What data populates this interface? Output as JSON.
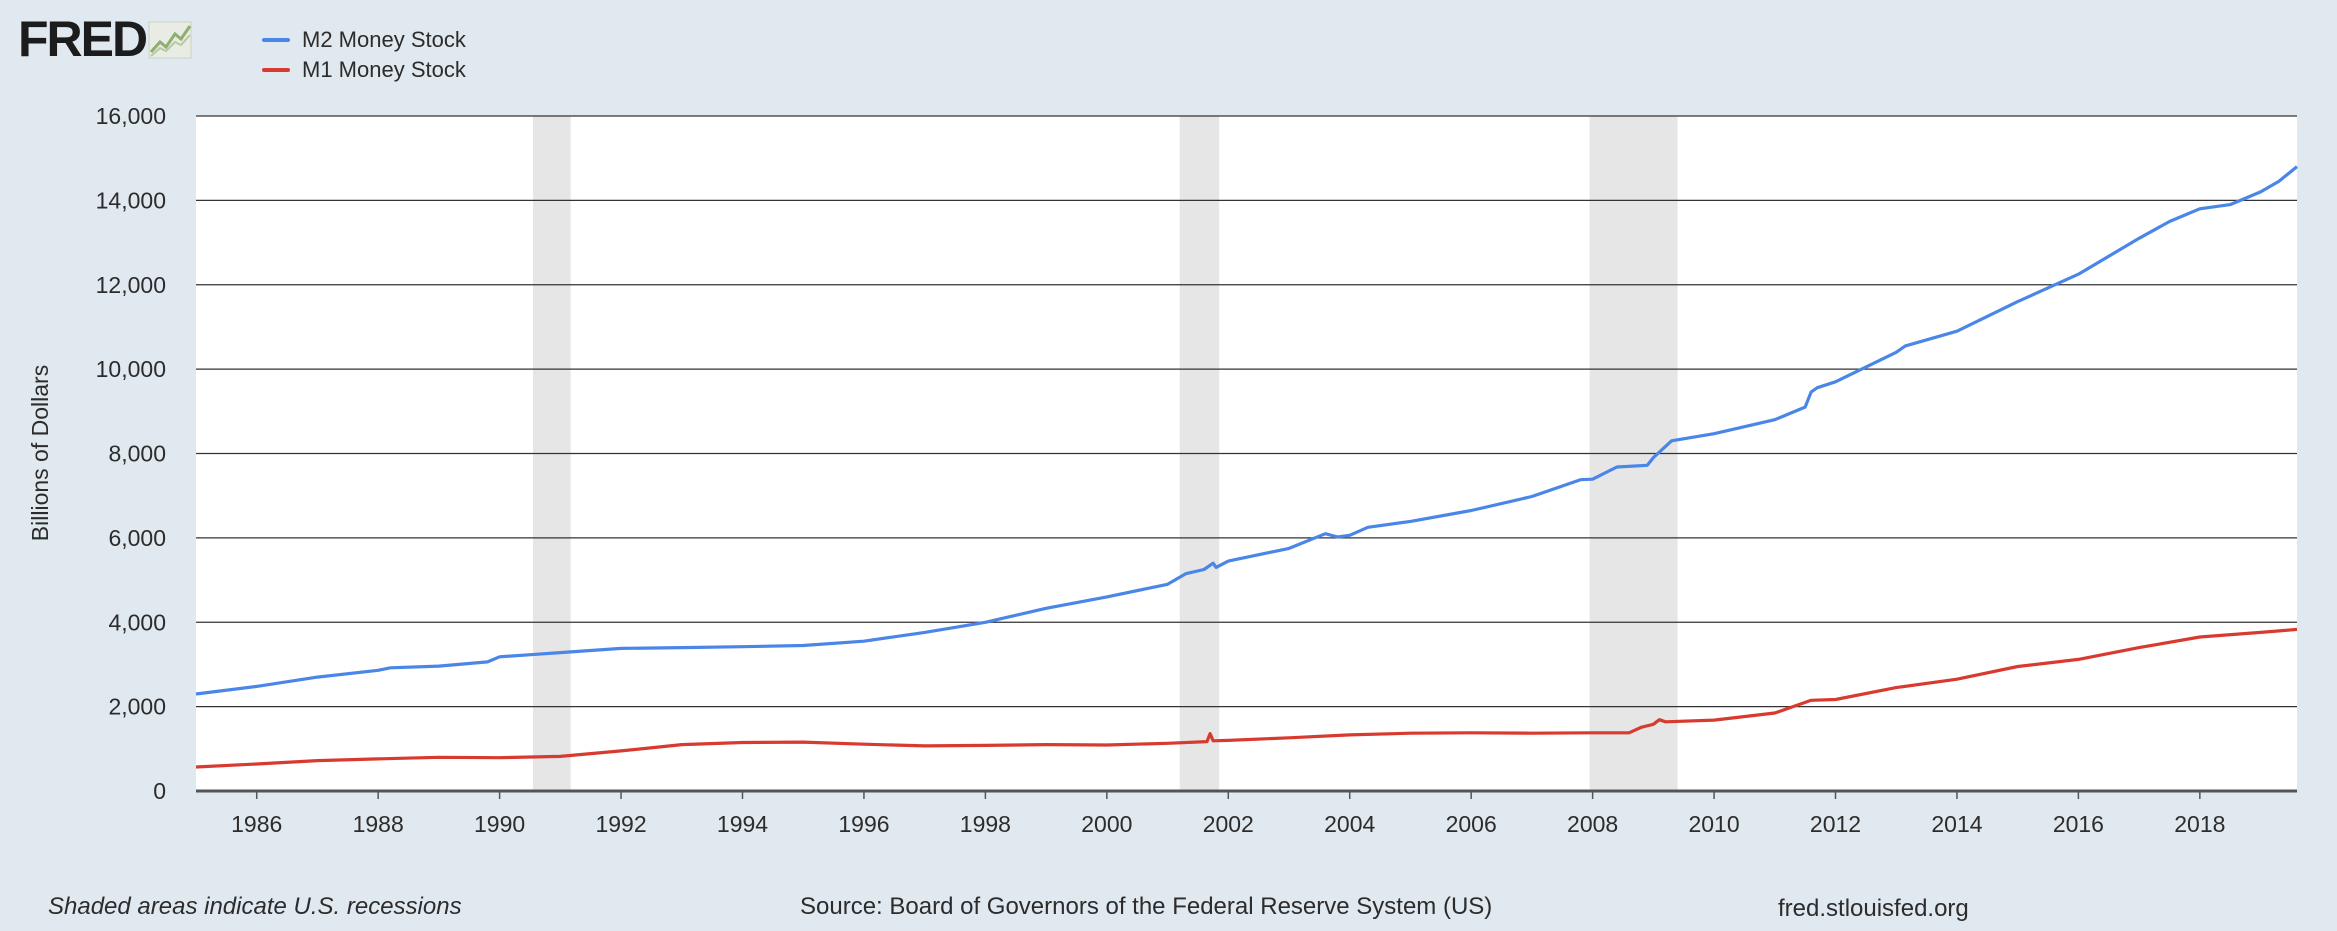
{
  "header": {
    "logo_text": "FRED"
  },
  "footer": {
    "note": "Shaded areas indicate U.S. recessions",
    "source": "Source: Board of Governors of the Federal Reserve System (US)",
    "site": "fred.stlouisfed.org"
  },
  "colors": {
    "m2": "#4a86e8",
    "m1": "#d93a2f",
    "recession": "#e6e6e6",
    "grid": "#333333",
    "background": "#e1e9f0",
    "logo_mark": "#8fae6f"
  },
  "chart_data": {
    "type": "line",
    "ylabel": "Billions of Dollars",
    "xlabel": "",
    "xlim": [
      1985.0,
      2019.6
    ],
    "ylim": [
      0,
      16000
    ],
    "yticks": [
      0,
      2000,
      4000,
      6000,
      8000,
      10000,
      12000,
      14000,
      16000
    ],
    "ytick_labels": [
      "0",
      "2,000",
      "4,000",
      "6,000",
      "8,000",
      "10,000",
      "12,000",
      "14,000",
      "16,000"
    ],
    "xticks": [
      1986,
      1988,
      1990,
      1992,
      1994,
      1996,
      1998,
      2000,
      2002,
      2004,
      2006,
      2008,
      2010,
      2012,
      2014,
      2016,
      2018
    ],
    "xtick_labels": [
      "1986",
      "1988",
      "1990",
      "1992",
      "1994",
      "1996",
      "1998",
      "2000",
      "2002",
      "2004",
      "2006",
      "2008",
      "2010",
      "2012",
      "2014",
      "2016",
      "2018"
    ],
    "grid": true,
    "legend_position": "top-left",
    "recessions": [
      [
        1990.55,
        1991.17
      ],
      [
        2001.2,
        2001.85
      ],
      [
        2007.95,
        2009.4
      ]
    ],
    "series": [
      {
        "name": "M2 Money Stock",
        "x": [
          1985.0,
          1986.0,
          1987.0,
          1988.0,
          1988.2,
          1989.0,
          1989.8,
          1990.0,
          1990.6,
          1991.0,
          1992.0,
          1993.0,
          1994.0,
          1995.0,
          1996.0,
          1997.0,
          1998.0,
          1999.0,
          2000.0,
          2001.0,
          2001.3,
          2001.6,
          2001.75,
          2001.8,
          2002.0,
          2003.0,
          2003.6,
          2003.8,
          2004.0,
          2004.3,
          2005.0,
          2006.0,
          2007.0,
          2007.8,
          2008.0,
          2008.4,
          2008.9,
          2009.0,
          2009.3,
          2010.0,
          2011.0,
          2011.5,
          2011.6,
          2011.7,
          2012.0,
          2013.0,
          2013.15,
          2014.0,
          2015.0,
          2016.0,
          2017.0,
          2017.5,
          2018.0,
          2018.5,
          2019.0,
          2019.3,
          2019.6
        ],
        "values": [
          2300,
          2480,
          2700,
          2860,
          2920,
          2960,
          3060,
          3180,
          3240,
          3280,
          3380,
          3400,
          3420,
          3450,
          3550,
          3760,
          4000,
          4330,
          4600,
          4900,
          5150,
          5250,
          5400,
          5300,
          5450,
          5750,
          6100,
          6020,
          6060,
          6250,
          6390,
          6650,
          6980,
          7380,
          7390,
          7680,
          7720,
          7900,
          8300,
          8470,
          8800,
          9100,
          9460,
          9560,
          9700,
          10400,
          10550,
          10900,
          11600,
          12250,
          13100,
          13500,
          13800,
          13900,
          14200,
          14450,
          14800
        ]
      },
      {
        "name": "M1 Money Stock",
        "x": [
          1985.0,
          1986.0,
          1987.0,
          1988.0,
          1989.0,
          1990.0,
          1991.0,
          1992.0,
          1993.0,
          1994.0,
          1995.0,
          1996.0,
          1997.0,
          1998.0,
          1999.0,
          2000.0,
          2001.0,
          2001.65,
          2001.7,
          2001.75,
          2002.0,
          2003.0,
          2004.0,
          2005.0,
          2006.0,
          2007.0,
          2008.0,
          2008.6,
          2008.8,
          2009.0,
          2009.1,
          2009.2,
          2010.0,
          2011.0,
          2011.6,
          2012.0,
          2013.0,
          2014.0,
          2015.0,
          2016.0,
          2017.0,
          2018.0,
          2019.0,
          2019.6
        ],
        "values": [
          570,
          640,
          720,
          760,
          800,
          790,
          820,
          950,
          1100,
          1150,
          1160,
          1110,
          1070,
          1080,
          1100,
          1090,
          1130,
          1170,
          1360,
          1190,
          1200,
          1260,
          1330,
          1370,
          1380,
          1370,
          1380,
          1380,
          1510,
          1580,
          1690,
          1640,
          1680,
          1850,
          2150,
          2170,
          2450,
          2650,
          2950,
          3120,
          3400,
          3650,
          3760,
          3830
        ]
      }
    ]
  }
}
